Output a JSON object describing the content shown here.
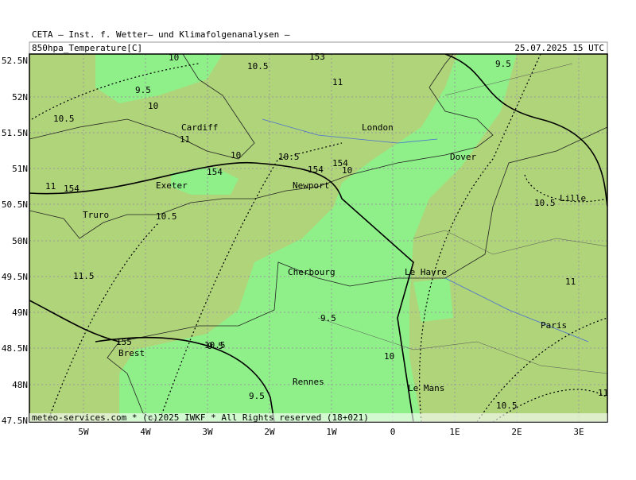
{
  "header": {
    "institute": "CETA — Inst. f. Wetter— und Klimafolgenanalysen —",
    "parameter": "850hpa_Temperature[C]",
    "valid_time": "25.07.2025 15 UTC"
  },
  "axes": {
    "latitudes": [
      "52.5N",
      "52N",
      "51.5N",
      "51N",
      "50.5N",
      "50N",
      "49.5N",
      "49N",
      "48.5N",
      "48N",
      "47.5N"
    ],
    "longitudes": [
      "5W",
      "4W",
      "3W",
      "2W",
      "1W",
      "0",
      "1E",
      "2E",
      "3E"
    ]
  },
  "places": [
    "Cardiff",
    "London",
    "Dover",
    "Exeter",
    "Newport",
    "Truro",
    "Lille",
    "Le Havre",
    "Cherbourg",
    "Paris",
    "Brest",
    "Rennes",
    "Le Mans"
  ],
  "contour_labels": [
    "10",
    "10.5",
    "153",
    "9.5",
    "10",
    "10.5",
    "11",
    "11",
    "10.5",
    "154",
    "10",
    "10.5",
    "154",
    "10",
    "154",
    "11",
    "154",
    "10.5",
    "9.5",
    "10.5",
    "11.5",
    "11",
    "9.5",
    "155",
    "9.5",
    "10",
    "9.5",
    "10.5",
    "11"
  ],
  "footer": "meteo-services.com * (c)2025 IWKF * All Rights reserved (18+021)"
}
